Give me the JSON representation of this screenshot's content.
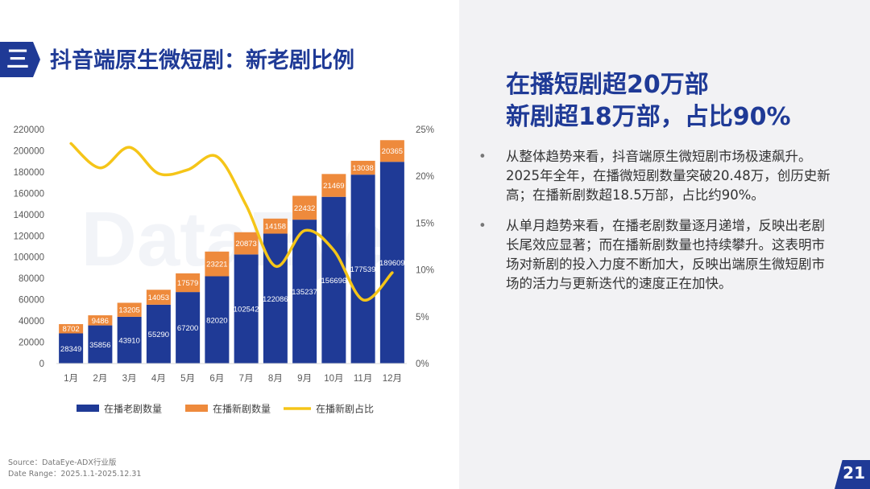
{
  "section": {
    "badge": "三",
    "title": "抖音端原生微短剧：新老剧比例"
  },
  "headline": {
    "line1": "在播短剧超20万部",
    "line2": "新剧超18万部，占比90%"
  },
  "bullets": [
    "从整体趋势来看，抖音端原生微短剧市场极速飙升。2025年全年，在播微短剧数量突破20.48万，创历史新高；在播新剧数超18.5万部，占比约90%。",
    "从单月趋势来看，在播老剧数量逐月递增，反映出老剧长尾效应显著；而在播新剧数量也持续攀升。这表明市场对新剧的投入力度不断加大，反映出端原生微短剧市场的活力与更新迭代的速度正在加快。"
  ],
  "watermark": "DataEye",
  "source": {
    "line1": "Source：DataEye-ADX行业版",
    "line2": "Date Range：2025.1.1-2025.12.31"
  },
  "page_number": "21",
  "colors": {
    "old": "#1f3a96",
    "new": "#ee8a3c",
    "ratio": "#f5c518",
    "brand": "#1f3a96"
  },
  "chart_data": {
    "type": "bar",
    "stacked": true,
    "categories": [
      "1月",
      "2月",
      "3月",
      "4月",
      "5月",
      "6月",
      "7月",
      "8月",
      "9月",
      "10月",
      "11月",
      "12月"
    ],
    "series": [
      {
        "name": "在播老剧数量",
        "values": [
          28349,
          35856,
          43910,
          55290,
          67200,
          82020,
          102542,
          122086,
          135237,
          156696,
          177539,
          189609
        ]
      },
      {
        "name": "在播新剧数量",
        "values": [
          8702,
          9486,
          13205,
          14053,
          17579,
          23221,
          20873,
          14158,
          22432,
          21469,
          13038,
          20365
        ]
      }
    ],
    "line_series": {
      "name": "在播新剧占比",
      "axis": "right",
      "values": [
        23.5,
        20.9,
        23.1,
        20.3,
        20.7,
        22.1,
        16.9,
        10.4,
        14.2,
        12.1,
        6.8,
        9.7
      ]
    },
    "yticks_left": [
      "0",
      "20000",
      "40000",
      "60000",
      "80000",
      "100000",
      "120000",
      "140000",
      "160000",
      "180000",
      "200000",
      "220000"
    ],
    "yticks_right": [
      "0%",
      "5%",
      "10%",
      "15%",
      "20%",
      "25%"
    ],
    "ylim": [
      0,
      220000
    ],
    "ylim_right": [
      0,
      25
    ],
    "legend": [
      "在播老剧数量",
      "在播新剧数量",
      "在播新剧占比"
    ],
    "legend_position": "bottom"
  }
}
